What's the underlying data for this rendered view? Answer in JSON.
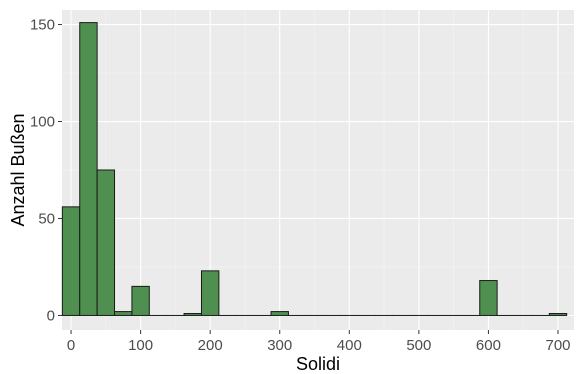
{
  "chart_data": {
    "type": "bar",
    "subtype": "histogram",
    "xlabel": "Solidi",
    "ylabel": "Anzahl Bußen",
    "xlim": [
      -13,
      723
    ],
    "ylim": [
      -7.5,
      157.5
    ],
    "x_ticks": [
      0,
      100,
      200,
      300,
      400,
      500,
      600,
      700
    ],
    "y_ticks": [
      0,
      50,
      100,
      150
    ],
    "bin_width": 25,
    "bins": [
      {
        "x0": -12.5,
        "x1": 12.5,
        "count": 56
      },
      {
        "x0": 12.5,
        "x1": 37.5,
        "count": 151
      },
      {
        "x0": 37.5,
        "x1": 62.5,
        "count": 75
      },
      {
        "x0": 62.5,
        "x1": 87.5,
        "count": 2
      },
      {
        "x0": 87.5,
        "x1": 112.5,
        "count": 15
      },
      {
        "x0": 112.5,
        "x1": 137.5,
        "count": 0
      },
      {
        "x0": 137.5,
        "x1": 162.5,
        "count": 0
      },
      {
        "x0": 162.5,
        "x1": 187.5,
        "count": 1
      },
      {
        "x0": 187.5,
        "x1": 212.5,
        "count": 23
      },
      {
        "x0": 212.5,
        "x1": 237.5,
        "count": 0
      },
      {
        "x0": 237.5,
        "x1": 262.5,
        "count": 0
      },
      {
        "x0": 262.5,
        "x1": 287.5,
        "count": 0
      },
      {
        "x0": 287.5,
        "x1": 312.5,
        "count": 2
      },
      {
        "x0": 312.5,
        "x1": 337.5,
        "count": 0
      },
      {
        "x0": 337.5,
        "x1": 362.5,
        "count": 0
      },
      {
        "x0": 362.5,
        "x1": 387.5,
        "count": 0
      },
      {
        "x0": 387.5,
        "x1": 412.5,
        "count": 0
      },
      {
        "x0": 412.5,
        "x1": 437.5,
        "count": 0
      },
      {
        "x0": 437.5,
        "x1": 462.5,
        "count": 0
      },
      {
        "x0": 462.5,
        "x1": 487.5,
        "count": 0
      },
      {
        "x0": 487.5,
        "x1": 512.5,
        "count": 0
      },
      {
        "x0": 512.5,
        "x1": 537.5,
        "count": 0
      },
      {
        "x0": 537.5,
        "x1": 562.5,
        "count": 0
      },
      {
        "x0": 562.5,
        "x1": 587.5,
        "count": 0
      },
      {
        "x0": 587.5,
        "x1": 612.5,
        "count": 18
      },
      {
        "x0": 612.5,
        "x1": 637.5,
        "count": 0
      },
      {
        "x0": 637.5,
        "x1": 662.5,
        "count": 0
      },
      {
        "x0": 662.5,
        "x1": 687.5,
        "count": 0
      },
      {
        "x0": 687.5,
        "x1": 712.5,
        "count": 1
      }
    ],
    "grid": true,
    "legend": "none",
    "colors": {
      "bar_fill": "#4f8f4f",
      "bar_stroke": "#1a1a1a",
      "panel_background": "#ebebeb",
      "grid_major": "#ffffff",
      "grid_minor": "#f5f5f5"
    }
  }
}
